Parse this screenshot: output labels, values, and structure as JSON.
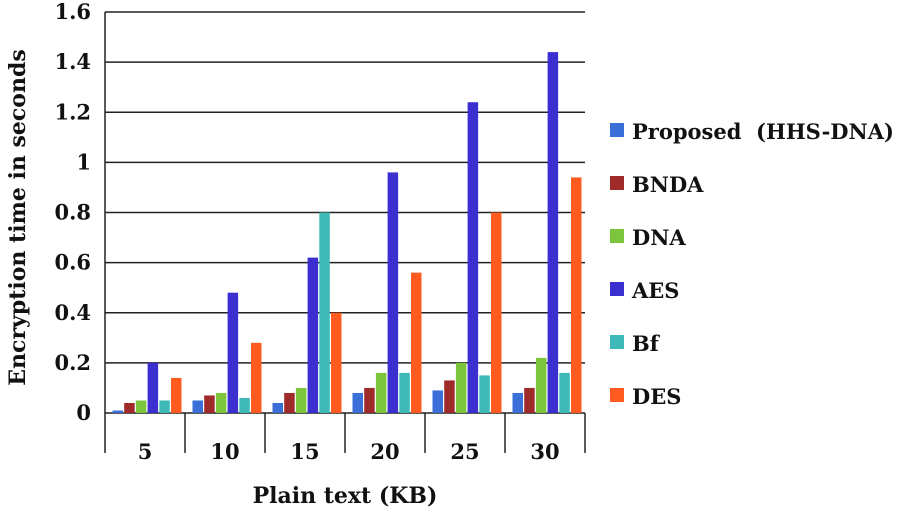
{
  "chart_data": {
    "type": "bar",
    "title": "",
    "xlabel": "Plain text (KB)",
    "ylabel": "Encryption time in seconds",
    "ylim": [
      0,
      1.6
    ],
    "yticks": [
      "0",
      "0.2",
      "0.4",
      "0.6",
      "0.8",
      "1",
      "1.2",
      "1.4",
      "1.6"
    ],
    "categories": [
      "5",
      "10",
      "15",
      "20",
      "25",
      "30"
    ],
    "grid": true,
    "legend_position": "right",
    "series": [
      {
        "name": "Proposed  (HHS-DNA)",
        "color": "#3a6fd8",
        "values": [
          0.01,
          0.05,
          0.04,
          0.08,
          0.09,
          0.08
        ]
      },
      {
        "name": "BNDA",
        "color": "#9e2a2a",
        "values": [
          0.04,
          0.07,
          0.08,
          0.1,
          0.13,
          0.1
        ]
      },
      {
        "name": "DNA",
        "color": "#7cc43c",
        "values": [
          0.05,
          0.08,
          0.1,
          0.16,
          0.2,
          0.22
        ]
      },
      {
        "name": "AES",
        "color": "#3b2fd0",
        "values": [
          0.2,
          0.48,
          0.62,
          0.96,
          1.24,
          1.44
        ]
      },
      {
        "name": "Bf",
        "color": "#3fb8b8",
        "values": [
          0.05,
          0.06,
          0.8,
          0.16,
          0.15,
          0.16
        ]
      },
      {
        "name": "DES",
        "color": "#ff5a1f",
        "values": [
          0.14,
          0.28,
          0.4,
          0.56,
          0.8,
          0.94
        ]
      }
    ]
  }
}
